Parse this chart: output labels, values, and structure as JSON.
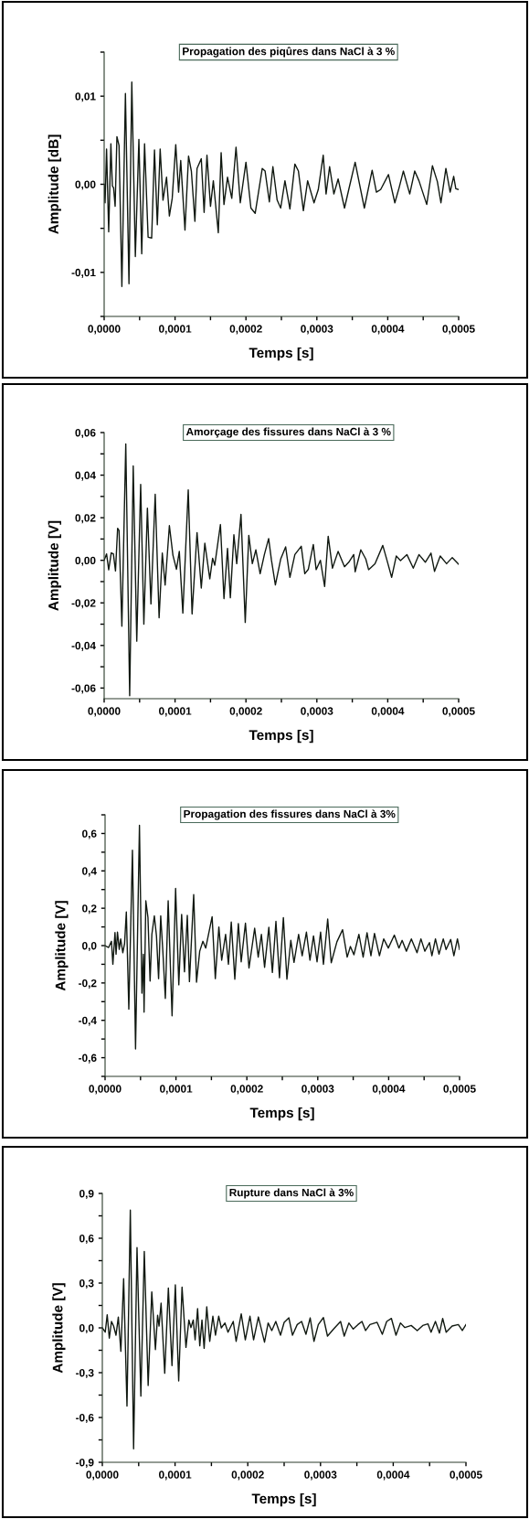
{
  "chart_data": [
    {
      "type": "line",
      "title": "Propagation des piqûres dans NaCl à 3 %",
      "xlabel": "Temps [s]",
      "ylabel": "Amplitude [dB]",
      "xlim": [
        0,
        0.0005
      ],
      "ylim": [
        -0.015,
        0.015
      ],
      "xticks": [
        {
          "value": 0,
          "label": "0,0000"
        },
        {
          "value": 5e-05,
          "label": null
        },
        {
          "value": 0.0001,
          "label": "0,0001"
        },
        {
          "value": 0.00015,
          "label": null
        },
        {
          "value": 0.0002,
          "label": "0,0002"
        },
        {
          "value": 0.00025,
          "label": null
        },
        {
          "value": 0.0003,
          "label": "0,0003"
        },
        {
          "value": 0.00035,
          "label": null
        },
        {
          "value": 0.0004,
          "label": "0,0004"
        },
        {
          "value": 0.00045,
          "label": null
        },
        {
          "value": 0.0005,
          "label": "0,0005"
        }
      ],
      "yticks": [
        {
          "value": -0.015,
          "label": null
        },
        {
          "value": -0.01,
          "label": "-0,01"
        },
        {
          "value": -0.005,
          "label": null
        },
        {
          "value": 0,
          "label": "0,00"
        },
        {
          "value": 0.005,
          "label": null
        },
        {
          "value": 0.01,
          "label": "0,01"
        },
        {
          "value": 0.015,
          "label": null
        }
      ],
      "grid": false,
      "marker": "none",
      "line_style": "solid",
      "series": [
        {
          "color": "#101810",
          "x": [
            0,
            1.3e-06,
            3.4e-06,
            6.4e-06,
            9.5e-06,
            1.16e-05,
            1.33e-05,
            1.55e-05,
            1.8e-05,
            2.1e-05,
            2.5e-05,
            3e-05,
            3.5e-05,
            3.9e-05,
            4.4e-05,
            4.9e-05,
            5.3e-05,
            5.7e-05,
            6.2e-05,
            6.7e-05,
            7.1e-05,
            7.5e-05,
            7.9e-05,
            8.3e-05,
            8.8e-05,
            9.2e-05,
            9.6e-05,
            0.000101,
            0.000105,
            0.000108,
            0.000114,
            0.000119,
            0.000123,
            0.000128,
            0.000131,
            0.000137,
            0.000141,
            0.000145,
            0.00015,
            0.000154,
            0.000161,
            0.000165,
            0.000169,
            0.000174,
            0.00018,
            0.000186,
            0.000192,
            0.0002,
            0.000207,
            0.000213,
            0.000223,
            0.000227,
            0.000233,
            0.000238,
            0.000244,
            0.000249,
            0.000255,
            0.000262,
            0.000269,
            0.000274,
            0.000281,
            0.000287,
            0.000296,
            0.000302,
            0.000309,
            0.000313,
            0.000318,
            0.000324,
            0.00033,
            0.000339,
            0.000345,
            0.000354,
            0.00036,
            0.000367,
            0.000378,
            0.000384,
            0.00039,
            0.000401,
            0.00041,
            0.000416,
            0.000422,
            0.000431,
            0.000438,
            0.000444,
            0.000455,
            0.000463,
            0.00047,
            0.000475,
            0.000482,
            0.000488,
            0.000493,
            0.000496,
            0.0005
          ],
          "values": [
            0,
            -0.0021,
            0.004,
            -0.0054,
            0.0046,
            -0.0002,
            -0.0004,
            -0.0025,
            0.0054,
            0.0044,
            -0.0116,
            0.0103,
            -0.0113,
            0.0116,
            -0.0082,
            0.0051,
            -0.0079,
            0.0046,
            -0.006,
            -0.0061,
            0.0039,
            -0.0046,
            0.004,
            -0.0018,
            0.0008,
            -0.0036,
            -0.0016,
            0.0045,
            -0.0009,
            0.0027,
            -0.0052,
            0.0032,
            0.0015,
            -0.0042,
            0.0018,
            0.0029,
            -0.0032,
            0.0033,
            -0.0025,
            0.0004,
            -0.0055,
            0.0036,
            -0.0023,
            0.0008,
            -0.0016,
            0.0042,
            -0.0021,
            0.0025,
            -0.0027,
            -0.0033,
            0.0018,
            0.0015,
            -0.002,
            0.002,
            -0.0018,
            -0.0027,
            0.0004,
            -0.0028,
            0.0023,
            0.0015,
            -0.003,
            0.0004,
            -0.0021,
            -0.0006,
            0.0033,
            -0.0011,
            0.002,
            -0.0011,
            0.0006,
            -0.0027,
            -0.0006,
            0.0025,
            0.0001,
            -0.0027,
            0.0016,
            -0.0009,
            -0.0006,
            0.0011,
            -0.0021,
            -0.0004,
            0.0015,
            -0.0011,
            0.0015,
            0.0004,
            -0.0023,
            0.0021,
            0.0003,
            -0.0021,
            0.0018,
            -0.0009,
            0.0009,
            -0.0005,
            -0.0006
          ]
        }
      ]
    },
    {
      "type": "line",
      "title": "Amorçage des fissures dans NaCl à 3 %",
      "xlabel": "Temps [s]",
      "ylabel": "Amplitude [V]",
      "xlim": [
        0,
        0.0005
      ],
      "ylim": [
        -0.065,
        0.06
      ],
      "xticks": [
        {
          "value": 0,
          "label": "0,0000"
        },
        {
          "value": 5e-05,
          "label": null
        },
        {
          "value": 0.0001,
          "label": "0,0001"
        },
        {
          "value": 0.00015,
          "label": null
        },
        {
          "value": 0.0002,
          "label": "0,0002"
        },
        {
          "value": 0.00025,
          "label": null
        },
        {
          "value": 0.0003,
          "label": "0,0003"
        },
        {
          "value": 0.00035,
          "label": null
        },
        {
          "value": 0.0004,
          "label": "0,0004"
        },
        {
          "value": 0.00045,
          "label": null
        },
        {
          "value": 0.0005,
          "label": "0,0005"
        }
      ],
      "yticks": [
        {
          "value": -0.06,
          "label": "-0,06"
        },
        {
          "value": -0.05,
          "label": null
        },
        {
          "value": -0.04,
          "label": "-0,04"
        },
        {
          "value": -0.03,
          "label": null
        },
        {
          "value": -0.02,
          "label": "-0,02"
        },
        {
          "value": -0.01,
          "label": null
        },
        {
          "value": 0,
          "label": "0,00"
        },
        {
          "value": 0.01,
          "label": null
        },
        {
          "value": 0.02,
          "label": "0,02"
        },
        {
          "value": 0.03,
          "label": null
        },
        {
          "value": 0.04,
          "label": "0,04"
        },
        {
          "value": 0.05,
          "label": null
        },
        {
          "value": 0.06,
          "label": "0,06"
        }
      ],
      "grid": false,
      "marker": "none",
      "line_style": "solid",
      "series": [
        {
          "color": "#101810",
          "x": [
            0,
            3.4e-06,
            6.4e-06,
            1e-05,
            1.3e-05,
            1.6e-05,
            1.9e-05,
            2.1e-05,
            2.5e-05,
            3.05e-05,
            3.6e-05,
            4.1e-05,
            4.6e-05,
            5.15e-05,
            5.6e-05,
            6.1e-05,
            6.6e-05,
            7.2e-05,
            7.75e-05,
            8.2e-05,
            8.6e-05,
            9.2e-05,
            9.7e-05,
            0.000102,
            0.000106,
            0.000111,
            0.0001186,
            0.000124,
            0.000131,
            0.000137,
            0.000142,
            0.000149,
            0.000153,
            0.000156,
            0.000164,
            0.000169,
            0.000174,
            0.000178,
            0.000183,
            0.000187,
            0.000193,
            0.000199,
            0.000204,
            0.000209,
            0.000214,
            0.00022,
            0.000226,
            0.000232,
            0.000236,
            0.0002415,
            0.000249,
            0.000256,
            0.000262,
            0.000269,
            0.000278,
            0.000283,
            0.000288,
            0.000295,
            0.000299,
            0.000305,
            0.000311,
            0.000316,
            0.000322,
            0.00033,
            0.000339,
            0.000345,
            0.000352,
            0.000354,
            0.000362,
            0.000369,
            0.000373,
            0.000382,
            0.000393,
            0.000399,
            0.0004055,
            0.000412,
            0.000418,
            0.000427,
            0.000436,
            0.000444,
            0.000453,
            0.000461,
            0.000466,
            0.000474,
            0.000483,
            0.000491,
            0.0005
          ],
          "values": [
            0,
            0.003,
            -0.0045,
            0.0035,
            0.003,
            -0.005,
            0.015,
            0.014,
            -0.031,
            0.0547,
            -0.0636,
            0.0443,
            -0.038,
            0.0357,
            -0.03,
            0.0245,
            -0.0205,
            0.031,
            -0.027,
            0.0034,
            -0.0116,
            0.0163,
            0.0024,
            -0.0042,
            0.0042,
            -0.0248,
            0.0331,
            -0.0252,
            0.013,
            -0.013,
            0.008,
            -0.0087,
            0.001,
            -0.0023,
            0.0168,
            -0.018,
            0.0056,
            -0.0176,
            0.012,
            -0.0016,
            0.0216,
            -0.0292,
            0.0117,
            -0.0016,
            0.0049,
            -0.0063,
            0.0027,
            0.0102,
            0,
            -0.0116,
            0.0006,
            0.0063,
            -0.008,
            0.0027,
            0.0066,
            -0.0063,
            -0.0042,
            0.0074,
            -0.0044,
            0,
            -0.0123,
            0.0113,
            -0.0037,
            0.0042,
            -0.003,
            -0.0009,
            0.0027,
            -0.0054,
            0.0049,
            0.0006,
            -0.0044,
            -0.0016,
            0.007,
            -0.0001,
            -0.008,
            0.002,
            -0.0001,
            0.0027,
            -0.0037,
            0.0027,
            -0.0009,
            0.0034,
            -0.0052,
            0.002,
            -0.0016,
            0.0013,
            -0.0019
          ]
        }
      ]
    },
    {
      "type": "line",
      "title": "Propagation des fissures dans NaCl à 3%",
      "xlabel": "Temps [s]",
      "ylabel": "Amplitude [V]",
      "xlim": [
        0,
        0.0005
      ],
      "ylim": [
        -0.7,
        0.7
      ],
      "xticks": [
        {
          "value": 0,
          "label": "0,0000"
        },
        {
          "value": 5e-05,
          "label": null
        },
        {
          "value": 0.0001,
          "label": "0,0001"
        },
        {
          "value": 0.00015,
          "label": null
        },
        {
          "value": 0.0002,
          "label": "0,0002"
        },
        {
          "value": 0.00025,
          "label": null
        },
        {
          "value": 0.0003,
          "label": "0,0003"
        },
        {
          "value": 0.00035,
          "label": null
        },
        {
          "value": 0.0004,
          "label": "0,0004"
        },
        {
          "value": 0.00045,
          "label": null
        },
        {
          "value": 0.0005,
          "label": "0,0005"
        }
      ],
      "yticks": [
        {
          "value": -0.7,
          "label": null
        },
        {
          "value": -0.6,
          "label": "-0,6"
        },
        {
          "value": -0.5,
          "label": null
        },
        {
          "value": -0.4,
          "label": "-0,4"
        },
        {
          "value": -0.3,
          "label": null
        },
        {
          "value": -0.2,
          "label": "-0,2"
        },
        {
          "value": -0.1,
          "label": null
        },
        {
          "value": 0,
          "label": "0,0"
        },
        {
          "value": 0.1,
          "label": null
        },
        {
          "value": 0.2,
          "label": "0,2"
        },
        {
          "value": 0.3,
          "label": null
        },
        {
          "value": 0.4,
          "label": "0,4"
        },
        {
          "value": 0.5,
          "label": null
        },
        {
          "value": 0.6,
          "label": "0,6"
        },
        {
          "value": 0.7,
          "label": null
        }
      ],
      "grid": false,
      "marker": "none",
      "line_style": "solid",
      "series": [
        {
          "color": "#101810",
          "x": [
            0,
            5e-06,
            9e-06,
            1.1e-05,
            1.4e-05,
            1.55e-05,
            1.75e-05,
            2e-05,
            2.2e-05,
            2.5e-05,
            2.75e-05,
            3e-05,
            3.35e-05,
            3.86e-05,
            4.3e-05,
            4.85e-05,
            5.2e-05,
            5.4e-05,
            5.5e-05,
            5.75e-05,
            6.05e-05,
            6.35e-05,
            6.6e-05,
            6.95e-05,
            7.25e-05,
            7.55e-05,
            7.85e-05,
            8.15e-05,
            8.5e-05,
            8.9e-05,
            9.45e-05,
            9.95e-05,
            0.000104,
            0.000108,
            0.000112,
            0.000116,
            0.000119,
            0.000125,
            0.000129,
            0.0001335,
            0.000138,
            0.000142,
            0.000151,
            0.0001555,
            0.0001605,
            0.0001645,
            0.00017,
            0.000174,
            0.000178,
            0.000183,
            0.000188,
            0.000192,
            0.000198,
            0.000203,
            0.000211,
            0.000216,
            0.0002205,
            0.000225,
            0.000231,
            0.000236,
            0.000241,
            0.000246,
            0.0002515,
            0.0002565,
            0.000262,
            0.0002665,
            0.000273,
            0.000278,
            0.000284,
            0.000289,
            0.000294,
            0.000299,
            0.000304,
            0.000308,
            0.000314,
            0.000319,
            0.000327,
            0.000335,
            0.0003415,
            0.000346,
            0.000351,
            0.000358,
            0.000364,
            0.0003695,
            0.000375,
            0.00038,
            0.000387,
            0.000393,
            0.0003995,
            0.000408,
            0.0004145,
            0.000419,
            0.000425,
            0.000432,
            0.00044,
            0.0004455,
            0.000451,
            0.0004575,
            0.000461,
            0.000466,
            0.000471,
            0.000477,
            0.000481,
            0.0004875,
            0.000492,
            0.000497,
            0.0005
          ],
          "values": [
            0,
            -0.01,
            0.023,
            -0.1,
            0.07,
            -0.046,
            0.072,
            -0.02,
            0.036,
            -0.038,
            0.011,
            0.18,
            -0.34,
            0.51,
            -0.553,
            0.644,
            -0.255,
            -0.046,
            -0.356,
            0.24,
            0.15,
            -0.19,
            0.06,
            0.159,
            0.052,
            -0.177,
            0.159,
            -0.03,
            -0.283,
            0.24,
            -0.376,
            0.306,
            -0.21,
            0.167,
            -0.14,
            0.162,
            -0.193,
            0.273,
            -0.196,
            -0.03,
            0.023,
            -0.013,
            0.155,
            -0.177,
            0.1,
            -0.078,
            0.06,
            -0.1,
            0.126,
            -0.18,
            0.118,
            -0.087,
            0.12,
            -0.12,
            0.093,
            -0.062,
            0.06,
            -0.116,
            0.098,
            -0.144,
            0.13,
            -0.172,
            0.15,
            -0.18,
            0.028,
            -0.09,
            0.06,
            -0.054,
            0.072,
            -0.078,
            0.052,
            -0.087,
            0.072,
            -0.1,
            0.142,
            -0.092,
            0.02,
            0.085,
            -0.062,
            -0.005,
            -0.049,
            0.06,
            -0.062,
            0.069,
            -0.054,
            0.065,
            -0.054,
            0.036,
            -0.013,
            0.056,
            -0.013,
            0.028,
            -0.03,
            0.036,
            -0.038,
            0.036,
            -0.03,
            0.016,
            -0.054,
            0.036,
            -0.046,
            0.036,
            -0.021,
            0.033,
            -0.054,
            0.036,
            -0.021
          ]
        }
      ]
    },
    {
      "type": "line",
      "title": "Rupture dans NaCl à 3%",
      "xlabel": "Temps [s]",
      "ylabel": "Amplitude [V]",
      "xlim": [
        0,
        0.0005
      ],
      "ylim": [
        -0.9,
        0.9
      ],
      "xticks": [
        {
          "value": 0,
          "label": "0,0000"
        },
        {
          "value": 5e-05,
          "label": null
        },
        {
          "value": 0.0001,
          "label": "0,0001"
        },
        {
          "value": 0.00015,
          "label": null
        },
        {
          "value": 0.0002,
          "label": "0,0002"
        },
        {
          "value": 0.00025,
          "label": null
        },
        {
          "value": 0.0003,
          "label": "0,0003"
        },
        {
          "value": 0.00035,
          "label": null
        },
        {
          "value": 0.0004,
          "label": "0,0004"
        },
        {
          "value": 0.00045,
          "label": null
        },
        {
          "value": 0.0005,
          "label": "0,0005"
        }
      ],
      "yticks": [
        {
          "value": -0.9,
          "label": "-0,9"
        },
        {
          "value": -0.75,
          "label": null
        },
        {
          "value": -0.6,
          "label": "-0,6"
        },
        {
          "value": -0.45,
          "label": null
        },
        {
          "value": -0.3,
          "label": "-0,3"
        },
        {
          "value": -0.15,
          "label": null
        },
        {
          "value": 0,
          "label": "0,0"
        },
        {
          "value": 0.15,
          "label": null
        },
        {
          "value": 0.3,
          "label": "0,3"
        },
        {
          "value": 0.45,
          "label": null
        },
        {
          "value": 0.6,
          "label": "0,6"
        },
        {
          "value": 0.75,
          "label": null
        },
        {
          "value": 0.9,
          "label": "0,9"
        }
      ],
      "grid": false,
      "marker": "none",
      "line_style": "solid",
      "series": [
        {
          "color": "#101810",
          "x": [
            0,
            4e-06,
            6.7e-06,
            9.6e-06,
            1.26e-05,
            1.55e-05,
            1.88e-05,
            2.2e-05,
            2.55e-05,
            2.93e-05,
            3.39e-05,
            3.85e-05,
            4.3e-05,
            4.77e-05,
            5.3e-05,
            5.77e-05,
            6.3e-05,
            6.8e-05,
            7.3e-05,
            7.6e-05,
            7.8e-05,
            8.08e-05,
            8.58e-05,
            9.08e-05,
            9.58e-05,
            0.0001004,
            0.000105,
            0.0001096,
            0.000115,
            0.000119,
            0.0001218,
            0.000125,
            0.0001276,
            0.000131,
            0.000134,
            0.000137,
            0.00014,
            0.0001436,
            0.0001477,
            0.000152,
            0.0001556,
            0.00016,
            0.0001636,
            0.0001686,
            0.0001728,
            0.00018,
            0.000184,
            0.000191,
            0.0001966,
            0.000203,
            0.000208,
            0.0002146,
            0.000223,
            0.000228,
            0.000233,
            0.0002385,
            0.000245,
            0.00025,
            0.0002565,
            0.0002615,
            0.000268,
            0.000274,
            0.00028,
            0.0002858,
            0.000291,
            0.000297,
            0.000304,
            0.0003096,
            0.000318,
            0.0003276,
            0.0003326,
            0.000339,
            0.000345,
            0.0003515,
            0.000357,
            0.000362,
            0.000368,
            0.0003778,
            0.000385,
            0.000391,
            0.0003975,
            0.0004038,
            0.00041,
            0.000416,
            0.0004247,
            0.000433,
            0.0004406,
            0.0004477,
            0.000452,
            0.000458,
            0.0004636,
            0.000468,
            0.0004728,
            0.000481,
            0.0004895,
            0.000495,
            0.0005
          ],
          "values": [
            0,
            -0.029,
            0.088,
            -0.069,
            0.043,
            0.012,
            -0.049,
            0.073,
            -0.157,
            0.329,
            -0.524,
            0.788,
            -0.81,
            0.537,
            -0.457,
            0.512,
            -0.386,
            0.241,
            -0.145,
            0.084,
            0.012,
            0.165,
            -0.304,
            0.267,
            -0.253,
            0.288,
            -0.355,
            0.273,
            -0.131,
            0.053,
            0.002,
            0.053,
            -0.08,
            0.129,
            -0.12,
            0.053,
            -0.137,
            0.141,
            -0.09,
            0.078,
            -0.049,
            0.078,
            0,
            0.033,
            -0.029,
            0.043,
            -0.09,
            0.094,
            -0.08,
            0.078,
            -0.08,
            0.073,
            -0.096,
            0.033,
            -0.018,
            0.043,
            -0.049,
            0.037,
            0.067,
            -0.049,
            0.022,
            0.043,
            -0.043,
            0.067,
            -0.09,
            0.022,
            0.069,
            -0.055,
            -0.008,
            0.043,
            -0.055,
            0.033,
            -0.008,
            0.022,
            0.043,
            -0.018,
            0.022,
            0.037,
            -0.043,
            0.043,
            0.063,
            -0.049,
            0.033,
            0.002,
            0.016,
            -0.018,
            0.016,
            0.027,
            -0.029,
            0.043,
            -0.035,
            0.063,
            -0.029,
            0.012,
            0.022,
            -0.018,
            0.022
          ]
        }
      ]
    }
  ]
}
